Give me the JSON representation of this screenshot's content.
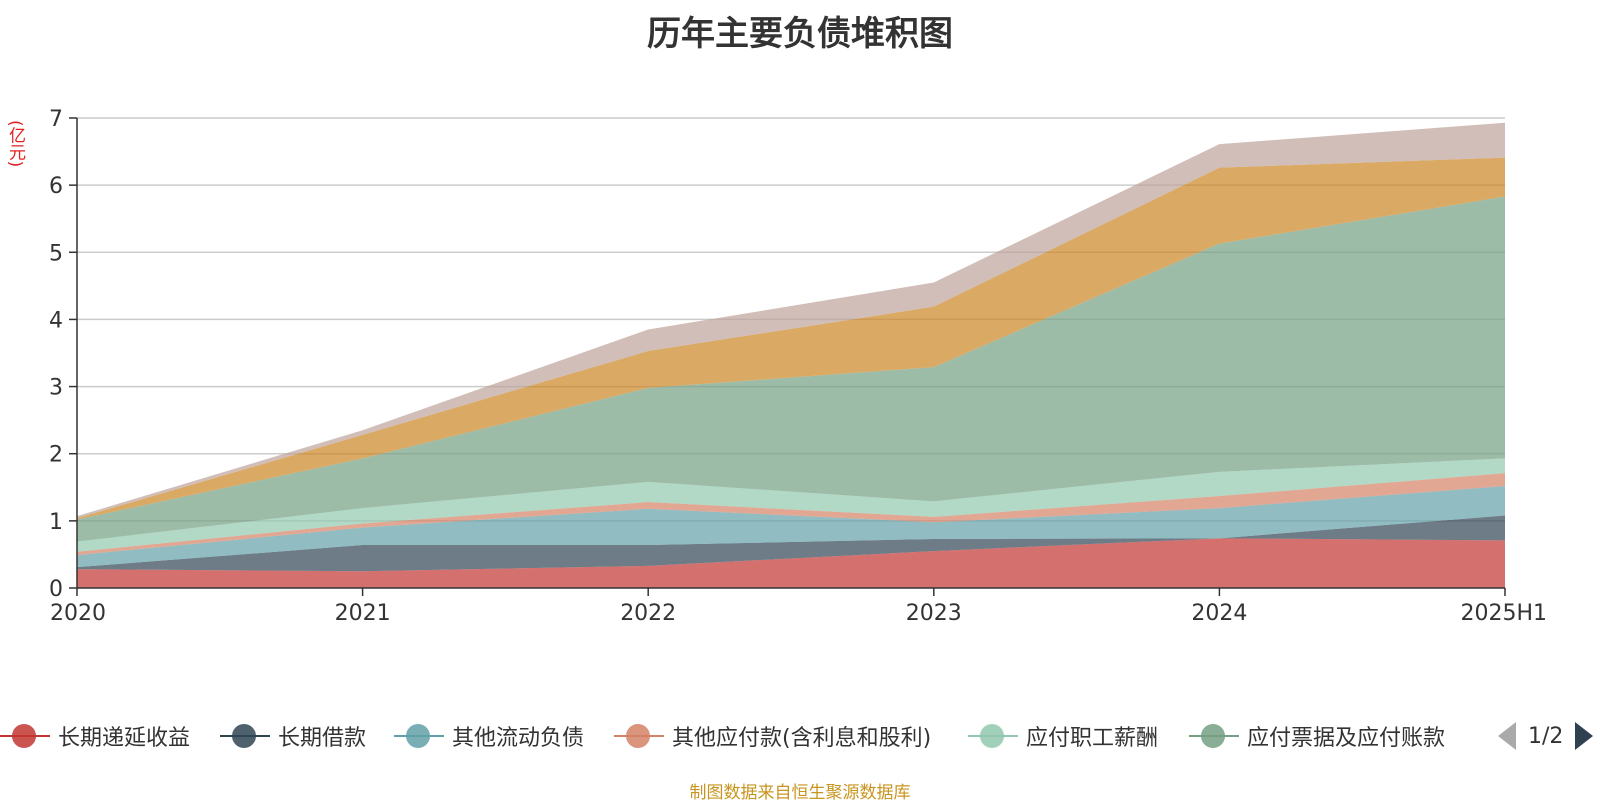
{
  "title": "历年主要负债堆积图",
  "unit_label": "(亿元)",
  "source_text": "制图数据来自恒生聚源数据库",
  "legend_page": "1/2",
  "chart_data": {
    "type": "area",
    "stacked": true,
    "title": "历年主要负债堆积图",
    "ylabel": "(亿元)",
    "xlabel": "",
    "categories": [
      "2020",
      "2021",
      "2022",
      "2023",
      "2024",
      "2025H1"
    ],
    "ylim": [
      0,
      7
    ],
    "yticks": [
      0,
      1,
      2,
      3,
      4,
      5,
      6,
      7
    ],
    "grid": true,
    "legend_position": "bottom",
    "series": [
      {
        "name": "长期递延收益",
        "color": "#c23531",
        "values": [
          0.28,
          0.25,
          0.33,
          0.55,
          0.74,
          0.71
        ]
      },
      {
        "name": "长期借款",
        "color": "#2f4554",
        "values": [
          0.03,
          0.39,
          0.31,
          0.18,
          0.0,
          0.37
        ]
      },
      {
        "name": "其他流动负债",
        "color": "#61a0a8",
        "values": [
          0.18,
          0.26,
          0.54,
          0.25,
          0.45,
          0.44
        ]
      },
      {
        "name": "其他应付款(含利息和股利)",
        "color": "#d48265",
        "values": [
          0.05,
          0.06,
          0.1,
          0.08,
          0.18,
          0.19
        ]
      },
      {
        "name": "应付职工薪酬",
        "color": "#91c7ae",
        "values": [
          0.15,
          0.23,
          0.3,
          0.23,
          0.36,
          0.22
        ]
      },
      {
        "name": "应付票据及应付账款",
        "color": "#749f83",
        "values": [
          0.33,
          0.74,
          1.4,
          2.0,
          3.4,
          3.9
        ]
      },
      {
        "name": "",
        "color": "#ca8622",
        "values": [
          0.02,
          0.35,
          0.55,
          0.9,
          1.13,
          0.58
        ]
      },
      {
        "name": "",
        "color": "#bda29a",
        "values": [
          0.03,
          0.07,
          0.32,
          0.36,
          0.35,
          0.52
        ]
      }
    ]
  }
}
